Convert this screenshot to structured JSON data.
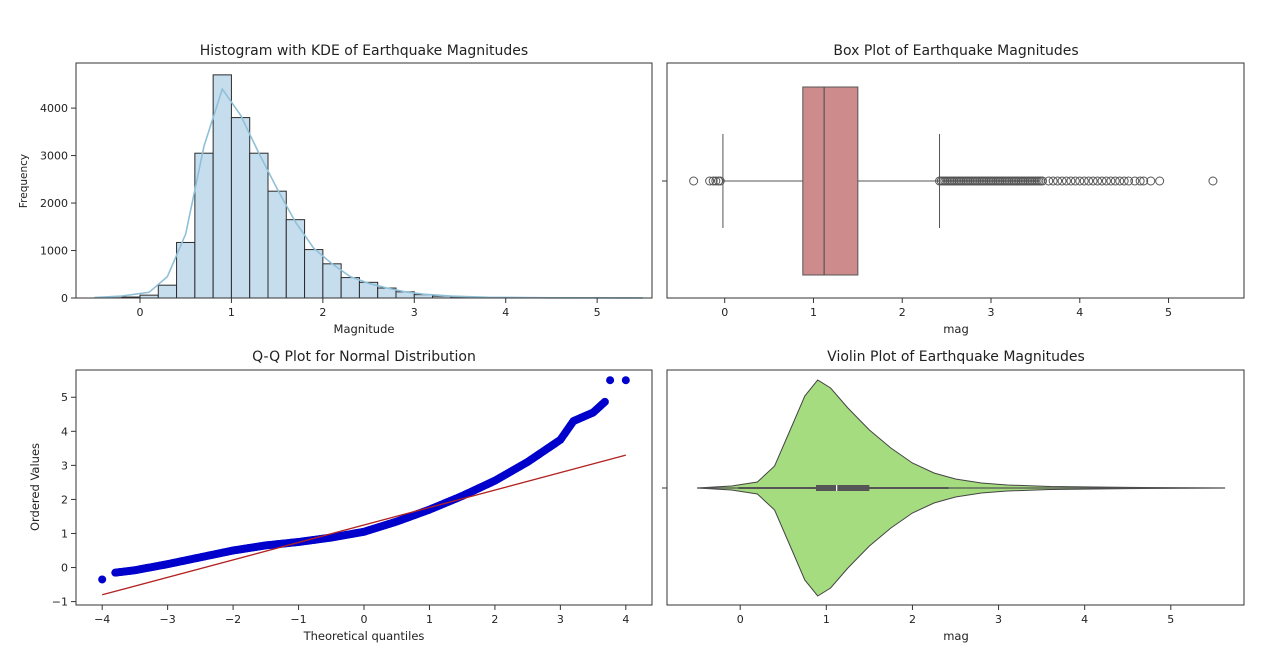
{
  "chart_data": [
    {
      "type": "bar",
      "title": "Histogram with KDE of Earthquake Magnitudes",
      "xlabel": "Magnitude",
      "ylabel": "Frequency",
      "xlim": [
        -0.7,
        5.6
      ],
      "ylim": [
        0,
        4950
      ],
      "xticks": [
        "0",
        "1",
        "2",
        "3",
        "4",
        "5"
      ],
      "yticks": [
        "0",
        "1000",
        "2000",
        "3000",
        "4000"
      ],
      "bin_edges": [
        -0.4,
        -0.2,
        0.0,
        0.2,
        0.4,
        0.6,
        0.8,
        1.0,
        1.2,
        1.4,
        1.6,
        1.8,
        2.0,
        2.2,
        2.4,
        2.6,
        2.8,
        3.0,
        3.2,
        3.4,
        3.6,
        3.8,
        4.0,
        4.2,
        4.4,
        4.6,
        4.8,
        5.0,
        5.2,
        5.4
      ],
      "values": [
        5,
        20,
        60,
        270,
        1170,
        3050,
        4700,
        3800,
        3050,
        2250,
        1650,
        1020,
        720,
        430,
        330,
        210,
        130,
        70,
        40,
        25,
        15,
        10,
        8,
        5,
        4,
        3,
        2,
        1,
        1
      ],
      "kde": {
        "x": [
          -0.5,
          -0.2,
          0.1,
          0.3,
          0.5,
          0.7,
          0.9,
          1.1,
          1.3,
          1.5,
          1.7,
          1.9,
          2.1,
          2.3,
          2.5,
          2.7,
          2.9,
          3.1,
          3.4,
          3.8,
          4.5,
          5.5
        ],
        "y": [
          10,
          40,
          120,
          450,
          1350,
          3200,
          4400,
          3850,
          3050,
          2300,
          1600,
          1050,
          720,
          450,
          310,
          210,
          130,
          80,
          40,
          15,
          5,
          2
        ]
      },
      "colors": {
        "bar": "#c6ddee",
        "edge": "#2b2b2b",
        "kde": "#8fc0d8"
      }
    },
    {
      "type": "box",
      "title": "Box Plot of Earthquake Magnitudes",
      "xlabel": "mag",
      "xlim": [
        -0.65,
        5.85
      ],
      "xticks": [
        "0",
        "1",
        "2",
        "3",
        "4",
        "5"
      ],
      "box": {
        "q1": 0.88,
        "median": 1.12,
        "q3": 1.5,
        "whisker_low": -0.02,
        "whisker_high": 2.42
      },
      "outliers_low": [
        -0.35,
        -0.17,
        -0.13,
        -0.1,
        -0.07,
        -0.05
      ],
      "outliers_high_dense_range": [
        2.42,
        3.6
      ],
      "outliers_high": [
        3.65,
        3.7,
        3.75,
        3.8,
        3.85,
        3.9,
        3.95,
        4.0,
        4.05,
        4.1,
        4.15,
        4.2,
        4.25,
        4.3,
        4.35,
        4.4,
        4.45,
        4.5,
        4.55,
        4.62,
        4.68,
        4.72,
        4.8,
        4.9,
        5.5
      ],
      "colors": {
        "box": "#cd8c8b",
        "line": "#555555",
        "flier": "#555555"
      }
    },
    {
      "type": "scatter",
      "title": "Q-Q Plot for Normal Distribution",
      "xlabel": "Theoretical quantiles",
      "ylabel": "Ordered Values",
      "xlim": [
        -4.4,
        4.4
      ],
      "ylim": [
        -1.1,
        5.8
      ],
      "xticks": [
        "−4",
        "−3",
        "−2",
        "−1",
        "0",
        "1",
        "2",
        "3",
        "4"
      ],
      "yticks": [
        "−1",
        "0",
        "1",
        "2",
        "3",
        "4",
        "5"
      ],
      "quantile_curve": {
        "x": [
          -3.8,
          -3.5,
          -3.0,
          -2.5,
          -2.0,
          -1.5,
          -1.0,
          -0.5,
          0.0,
          0.5,
          1.0,
          1.5,
          2.0,
          2.5,
          3.0,
          3.2,
          3.5,
          3.7
        ],
        "y": [
          -0.15,
          -0.08,
          0.1,
          0.3,
          0.5,
          0.65,
          0.75,
          0.88,
          1.05,
          1.35,
          1.7,
          2.1,
          2.55,
          3.1,
          3.75,
          4.3,
          4.55,
          4.9
        ]
      },
      "extra_points": {
        "x": [
          -4.0,
          3.76,
          4.0
        ],
        "y": [
          -0.35,
          5.5,
          5.5
        ]
      },
      "fit_line": {
        "x": [
          -4.0,
          4.0
        ],
        "y": [
          -0.8,
          3.3
        ]
      },
      "colors": {
        "points": "#0000cc",
        "line": "#b22222"
      }
    },
    {
      "type": "violin",
      "title": "Violin Plot of Earthquake Magnitudes",
      "xlabel": "mag",
      "xlim": [
        -0.85,
        5.85
      ],
      "xticks": [
        "0",
        "1",
        "2",
        "3",
        "4",
        "5"
      ],
      "density": {
        "x": [
          -0.5,
          -0.1,
          0.2,
          0.4,
          0.6,
          0.75,
          0.9,
          1.05,
          1.25,
          1.5,
          1.75,
          2.0,
          2.25,
          2.5,
          2.8,
          3.1,
          3.6,
          4.5,
          5.63
        ],
        "half_width": [
          0,
          2,
          6,
          22,
          62,
          92,
          108,
          100,
          80,
          58,
          40,
          25,
          15,
          9,
          5,
          3,
          1.5,
          0.6,
          0
        ]
      },
      "box": {
        "q1": 0.88,
        "median": 1.12,
        "q3": 1.5,
        "whisker_low": -0.02,
        "whisker_high": 2.42
      },
      "colors": {
        "fill": "#a6dc80",
        "edge": "#444444",
        "box": "#555555"
      }
    }
  ]
}
